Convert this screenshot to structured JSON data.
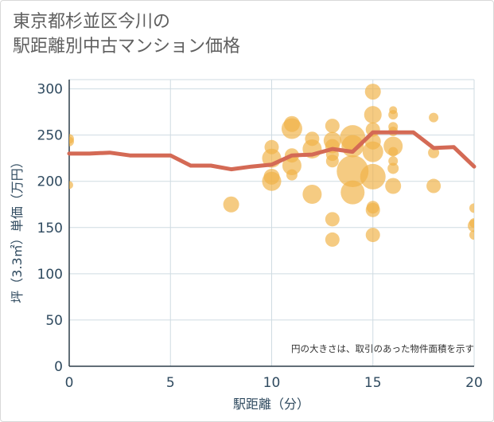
{
  "chart_data": {
    "type": "scatter",
    "title_line1": "東京都杉並区今川の",
    "title_line2": "駅距離別中古マンション価格",
    "xlabel": "駅距離（分）",
    "ylabel": "坪（3.3㎡）単価（万円）",
    "note": "円の大きさは、取引のあった物件面積を示す",
    "xlim": [
      0,
      20
    ],
    "ylim": [
      0,
      310
    ],
    "xticks": [
      0,
      5,
      10,
      15,
      20
    ],
    "yticks": [
      0,
      50,
      100,
      150,
      200,
      250,
      300
    ],
    "grid": true,
    "colors": {
      "bubble": "#f0b347",
      "line": "#d46a55",
      "grid": "#cfdbe2",
      "tick": "#2f4a5f"
    },
    "trend_line": {
      "x": [
        0,
        1,
        2,
        3,
        4,
        5,
        6,
        7,
        8,
        9,
        10,
        11,
        12,
        13,
        14,
        15,
        16,
        17,
        18,
        19,
        20
      ],
      "y": [
        230,
        230,
        231,
        228,
        228,
        228,
        217,
        217,
        213,
        216,
        218,
        228,
        229,
        235,
        232,
        253,
        253,
        253,
        236,
        237,
        216
      ]
    },
    "points": [
      {
        "x": 0,
        "y": 246,
        "s": 6
      },
      {
        "x": 0,
        "y": 243,
        "s": 6
      },
      {
        "x": 0,
        "y": 196,
        "s": 5
      },
      {
        "x": 8,
        "y": 175,
        "s": 10
      },
      {
        "x": 10,
        "y": 237,
        "s": 9
      },
      {
        "x": 10,
        "y": 225,
        "s": 12
      },
      {
        "x": 10,
        "y": 205,
        "s": 10
      },
      {
        "x": 10,
        "y": 200,
        "s": 12
      },
      {
        "x": 11,
        "y": 262,
        "s": 10
      },
      {
        "x": 11,
        "y": 257,
        "s": 13
      },
      {
        "x": 11,
        "y": 228,
        "s": 9
      },
      {
        "x": 11,
        "y": 217,
        "s": 12
      },
      {
        "x": 11,
        "y": 207,
        "s": 7
      },
      {
        "x": 12,
        "y": 246,
        "s": 9
      },
      {
        "x": 12,
        "y": 235,
        "s": 12
      },
      {
        "x": 12,
        "y": 186,
        "s": 12
      },
      {
        "x": 13,
        "y": 260,
        "s": 9
      },
      {
        "x": 13,
        "y": 244,
        "s": 11
      },
      {
        "x": 13,
        "y": 238,
        "s": 9
      },
      {
        "x": 13,
        "y": 229,
        "s": 8
      },
      {
        "x": 13,
        "y": 222,
        "s": 8
      },
      {
        "x": 13,
        "y": 159,
        "s": 9
      },
      {
        "x": 13,
        "y": 137,
        "s": 9
      },
      {
        "x": 14,
        "y": 247,
        "s": 16
      },
      {
        "x": 14,
        "y": 238,
        "s": 14
      },
      {
        "x": 14,
        "y": 211,
        "s": 20
      },
      {
        "x": 14,
        "y": 188,
        "s": 15
      },
      {
        "x": 15,
        "y": 297,
        "s": 10
      },
      {
        "x": 15,
        "y": 272,
        "s": 11
      },
      {
        "x": 15,
        "y": 256,
        "s": 9
      },
      {
        "x": 15,
        "y": 243,
        "s": 10
      },
      {
        "x": 15,
        "y": 232,
        "s": 13
      },
      {
        "x": 15,
        "y": 205,
        "s": 16
      },
      {
        "x": 15,
        "y": 172,
        "s": 8
      },
      {
        "x": 15,
        "y": 169,
        "s": 9
      },
      {
        "x": 15,
        "y": 142,
        "s": 9
      },
      {
        "x": 16,
        "y": 277,
        "s": 5
      },
      {
        "x": 16,
        "y": 272,
        "s": 6
      },
      {
        "x": 16,
        "y": 259,
        "s": 6
      },
      {
        "x": 16,
        "y": 254,
        "s": 6
      },
      {
        "x": 16,
        "y": 238,
        "s": 12
      },
      {
        "x": 16,
        "y": 232,
        "s": 6
      },
      {
        "x": 16,
        "y": 222,
        "s": 6
      },
      {
        "x": 16,
        "y": 214,
        "s": 7
      },
      {
        "x": 16,
        "y": 195,
        "s": 10
      },
      {
        "x": 18,
        "y": 269,
        "s": 6
      },
      {
        "x": 18,
        "y": 231,
        "s": 7
      },
      {
        "x": 18,
        "y": 195,
        "s": 9
      },
      {
        "x": 20,
        "y": 171,
        "s": 6
      },
      {
        "x": 20,
        "y": 155,
        "s": 6
      },
      {
        "x": 20,
        "y": 152,
        "s": 8
      },
      {
        "x": 20,
        "y": 142,
        "s": 6
      }
    ]
  }
}
